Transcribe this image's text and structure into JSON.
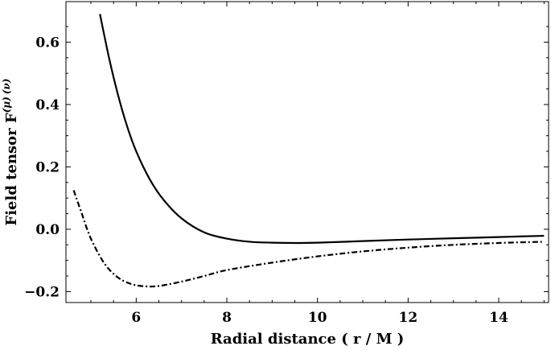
{
  "chart_data": {
    "type": "line",
    "xlabel": "Radial distance ( r / M )",
    "ylabel": "Field tensor F",
    "ylabel_super_mu": "(μ)",
    "ylabel_super_nu": "(ν)",
    "xlim": [
      4.45,
      15.1
    ],
    "ylim": [
      -0.235,
      0.73
    ],
    "x_ticks": [
      6,
      8,
      10,
      12,
      14
    ],
    "y_ticks": [
      -0.2,
      0.0,
      0.2,
      0.4,
      0.6
    ],
    "y_tick_labels": [
      "−0.2",
      "0.0",
      "0.2",
      "0.4",
      "0.6"
    ],
    "grid": false,
    "legend": "none",
    "series": [
      {
        "style": "solid",
        "color": "#000000",
        "x": [
          5.2,
          5.4,
          5.6,
          5.8,
          6.0,
          6.3,
          6.6,
          7.0,
          7.5,
          8.0,
          8.5,
          9.0,
          9.5,
          10.0,
          11.0,
          12.0,
          13.0,
          14.0,
          15.0
        ],
        "y": [
          0.69,
          0.55,
          0.43,
          0.33,
          0.25,
          0.16,
          0.095,
          0.035,
          -0.01,
          -0.03,
          -0.04,
          -0.043,
          -0.044,
          -0.043,
          -0.038,
          -0.033,
          -0.029,
          -0.025,
          -0.021
        ]
      },
      {
        "style": "dashdot",
        "color": "#000000",
        "x": [
          4.62,
          4.8,
          5.0,
          5.3,
          5.6,
          5.9,
          6.2,
          6.5,
          7.0,
          7.5,
          8.0,
          9.0,
          10.0,
          11.0,
          12.0,
          13.0,
          14.0,
          15.0
        ],
        "y": [
          0.125,
          0.05,
          -0.03,
          -0.11,
          -0.155,
          -0.176,
          -0.183,
          -0.182,
          -0.168,
          -0.15,
          -0.131,
          -0.107,
          -0.087,
          -0.071,
          -0.059,
          -0.05,
          -0.044,
          -0.04
        ]
      }
    ]
  }
}
